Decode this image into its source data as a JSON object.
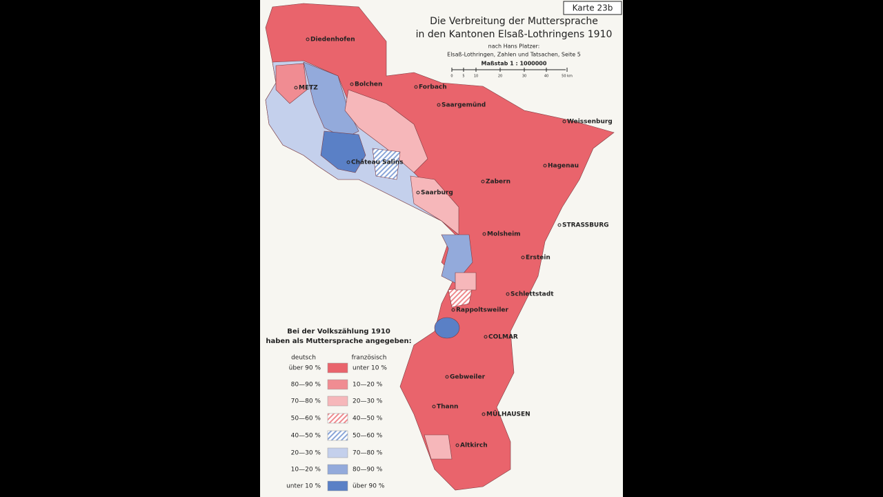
{
  "header": {
    "map_number": "Karte 23b",
    "title_line1": "Die Verbreitung der Muttersprache",
    "title_line2": "in den Kantonen Elsaß-Lothringens 1910",
    "source_line1": "nach Hans Platzer:",
    "source_line2": "Elsaß-Lothringen, Zahlen und Tatsachen, Seite 5",
    "scale": "Maßstab 1 : 1000000"
  },
  "scale_ticks": [
    "0",
    "5",
    "10",
    "20",
    "30",
    "40",
    "50 km"
  ],
  "places": [
    "Diedenhofen",
    "METZ",
    "Bolchen",
    "Forbach",
    "Saargemünd",
    "Weissenburg",
    "Château Salins",
    "Hagenau",
    "Zabern",
    "Saarburg",
    "STRASSBURG",
    "Molsheim",
    "Erstein",
    "Schlettstadt",
    "Rappoltsweiler",
    "COLMAR",
    "Gebweiler",
    "Thann",
    "MÜLHAUSEN",
    "Altkirch"
  ],
  "legend": {
    "heading_line1": "Bei der Volkszählung 1910",
    "heading_line2": "haben als Muttersprache angegeben:",
    "left_header": "deutsch",
    "right_header": "französisch",
    "rows": [
      {
        "deutsch": "über 90 %",
        "franzoesisch": "unter 10 %",
        "color": "#e9646c",
        "hatched": false
      },
      {
        "deutsch": "80—90 %",
        "franzoesisch": "10—20 %",
        "color": "#f08c92",
        "hatched": false
      },
      {
        "deutsch": "70—80 %",
        "franzoesisch": "20—30 %",
        "color": "#f6b7ba",
        "hatched": false
      },
      {
        "deutsch": "50—60 %",
        "franzoesisch": "40—50 %",
        "color": "#ee8a8e",
        "hatched": true
      },
      {
        "deutsch": "40—50 %",
        "franzoesisch": "50—60 %",
        "color": "#8aa6d8",
        "hatched": true
      },
      {
        "deutsch": "20—30 %",
        "franzoesisch": "70—80 %",
        "color": "#c4d0ec",
        "hatched": false
      },
      {
        "deutsch": "10—20 %",
        "franzoesisch": "80—90 %",
        "color": "#93aadb",
        "hatched": false
      },
      {
        "deutsch": "unter 10 %",
        "franzoesisch": "über 90 %",
        "color": "#5a80c6",
        "hatched": false
      }
    ]
  }
}
